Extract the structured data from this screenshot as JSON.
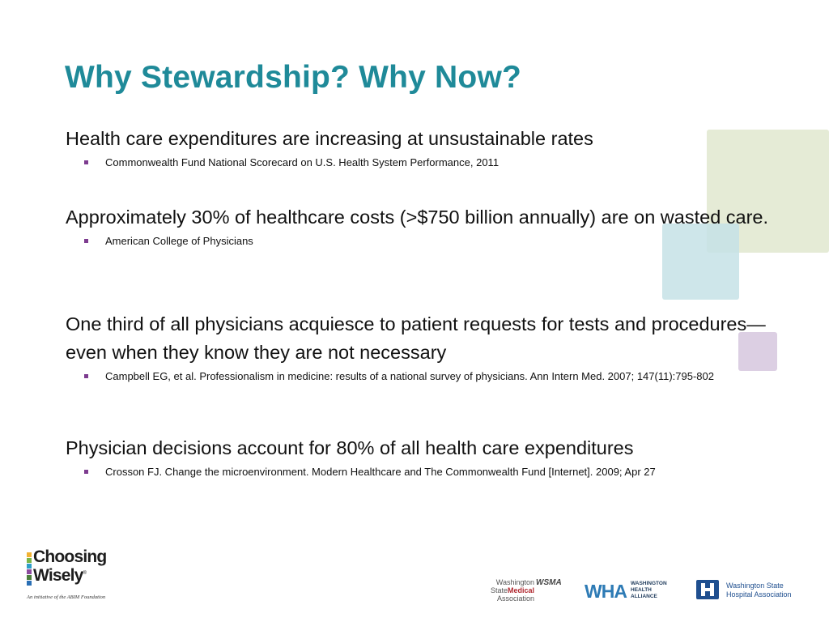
{
  "title": "Why Stewardship? Why Now?",
  "items": [
    {
      "heading": "Health care expenditures are increasing at unsustainable rates",
      "citation": "Commonwealth Fund National Scorecard on U.S. Health System Performance, 2011"
    },
    {
      "heading": "Approximately 30% of healthcare costs (>$750 billion annually) are on wasted care.",
      "citation": "American College of Physicians"
    },
    {
      "heading": "One third of all physicians acquiesce to patient requests for tests and procedures—even when they know they are not necessary",
      "citation": "Campbell EG, et al. Professionalism in medicine: results of a national survey of physicians. Ann Intern Med. 2007; 147(11):795-802"
    },
    {
      "heading": "Physician decisions account for 80% of all health care expenditures",
      "citation": "Crosson FJ. Change the microenvironment. Modern Healthcare and The Commonwealth Fund [Internet]. 2009; Apr 27"
    }
  ],
  "logos": {
    "choosing_wisely": {
      "line1": "Choosing",
      "line2": "Wisely",
      "tagline": "An initiative of the ABIM Foundation"
    },
    "wsma": {
      "line1": "Washington",
      "line2_a": "State",
      "line2_b": "Medical",
      "line3": "Association",
      "mark": "WSMA"
    },
    "wha": {
      "mark": "WHA",
      "line1": "WASHINGTON",
      "line2": "HEALTH",
      "line3": "ALLIANCE"
    },
    "wsha": {
      "line1": "Washington State",
      "line2": "Hospital Association"
    }
  },
  "colors": {
    "title": "#1f8a99",
    "bullet": "#7d3b8f",
    "deco_green": "#e5ebd6",
    "deco_teal": "#c6e2e6",
    "deco_purple": "#dccfe3"
  }
}
